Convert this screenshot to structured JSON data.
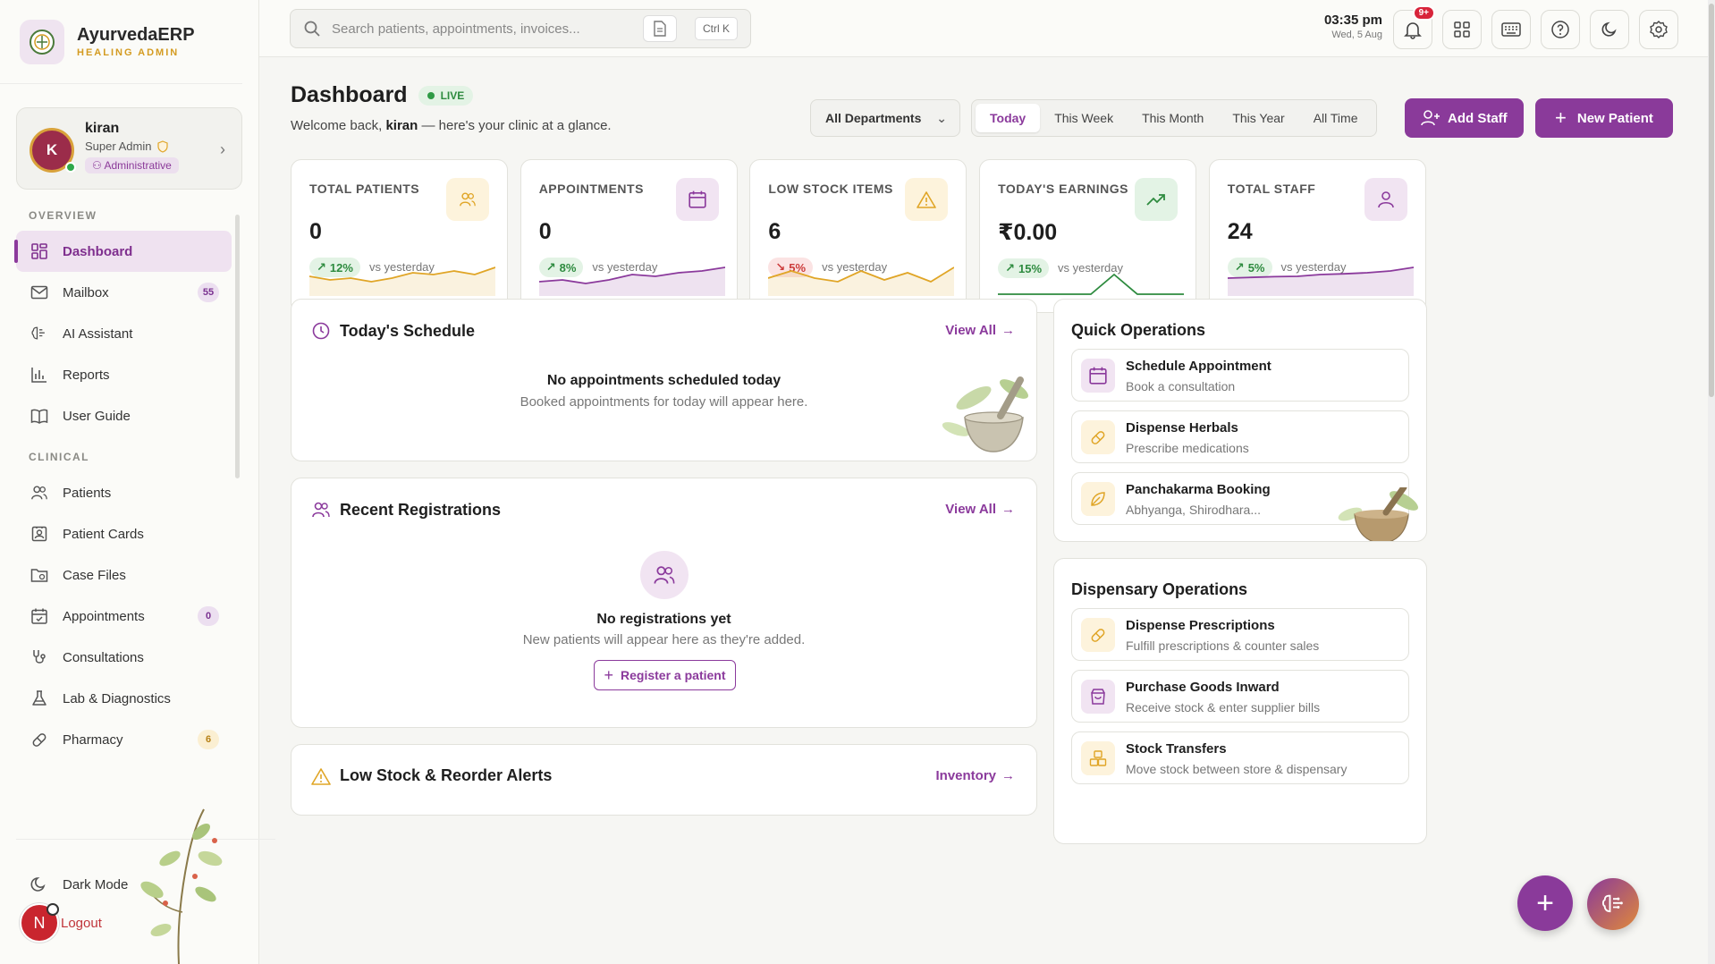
{
  "brand": {
    "title": "AyurvedaERP",
    "subtitle": "HEALING ADMIN"
  },
  "user": {
    "initial": "K",
    "name": "kiran",
    "role": "Super Admin",
    "badge": "Administrative"
  },
  "nav": {
    "overview_label": "OVERVIEW",
    "clinical_label": "CLINICAL",
    "overview": [
      {
        "label": "Dashboard",
        "icon": "dashboard-icon",
        "active": true
      },
      {
        "label": "Mailbox",
        "icon": "mail-icon",
        "badge": "55"
      },
      {
        "label": "AI Assistant",
        "icon": "ai-brain-icon"
      },
      {
        "label": "Reports",
        "icon": "bar-chart-icon"
      },
      {
        "label": "User Guide",
        "icon": "book-icon"
      }
    ],
    "clinical": [
      {
        "label": "Patients",
        "icon": "users-icon"
      },
      {
        "label": "Patient Cards",
        "icon": "id-card-icon"
      },
      {
        "label": "Case Files",
        "icon": "folder-icon"
      },
      {
        "label": "Appointments",
        "icon": "calendar-check-icon",
        "badge": "0"
      },
      {
        "label": "Consultations",
        "icon": "stethoscope-icon"
      },
      {
        "label": "Lab & Diagnostics",
        "icon": "flask-icon"
      },
      {
        "label": "Pharmacy",
        "icon": "pill-icon",
        "badge": "6"
      }
    ],
    "dark_mode": "Dark Mode",
    "logout": "Logout",
    "logout_initial": "N"
  },
  "topbar": {
    "search_placeholder": "Search patients, appointments, invoices...",
    "shortcut": "Ctrl K",
    "time": "03:35 pm",
    "date": "Wed, 5 Aug",
    "notif_count": "9+"
  },
  "header": {
    "title": "Dashboard",
    "live": "LIVE",
    "welcome_prefix": "Welcome back, ",
    "welcome_name": "kiran",
    "welcome_suffix": " — here's your clinic at a glance.",
    "department": "All Departments",
    "ranges": [
      "Today",
      "This Week",
      "This Month",
      "This Year",
      "All Time"
    ],
    "selected_range": "Today",
    "add_staff": "Add Staff",
    "new_patient": "New Patient"
  },
  "stats": [
    {
      "label": "TOTAL PATIENTS",
      "value": "0",
      "trend": "12%",
      "direction": "up",
      "vs": "vs yesterday",
      "color": "#e0a526",
      "icon_bg": "#fdf3dc",
      "icon": "users-icon",
      "spark": [
        0.45,
        0.55,
        0.5,
        0.6,
        0.5,
        0.35,
        0.4,
        0.3,
        0.4,
        0.2
      ]
    },
    {
      "label": "APPOINTMENTS",
      "value": "0",
      "trend": "8%",
      "direction": "up",
      "vs": "vs yesterday",
      "color": "#8b3a9c",
      "icon_bg": "#f1e4f2",
      "icon": "calendar-icon",
      "spark": [
        0.6,
        0.55,
        0.65,
        0.55,
        0.4,
        0.45,
        0.35,
        0.3,
        0.2
      ]
    },
    {
      "label": "LOW STOCK ITEMS",
      "value": "6",
      "trend": "5%",
      "direction": "down",
      "vs": "vs yesterday",
      "color": "#e0a526",
      "icon_bg": "#fdf3dc",
      "icon": "warning-icon",
      "spark": [
        0.5,
        0.3,
        0.5,
        0.6,
        0.3,
        0.55,
        0.35,
        0.6,
        0.2
      ]
    },
    {
      "label": "TODAY'S EARNINGS",
      "value": "₹0.00",
      "trend": "15%",
      "direction": "up",
      "vs": "vs yesterday",
      "color": "#2e8b3f",
      "icon_bg": "#e3f3e5",
      "icon": "trending-up-icon",
      "spark": [
        0.95,
        0.95,
        0.95,
        0.95,
        0.95,
        0.4,
        0.95,
        0.95,
        0.95
      ]
    },
    {
      "label": "TOTAL STAFF",
      "value": "24",
      "trend": "5%",
      "direction": "up",
      "vs": "vs yesterday",
      "color": "#8b3a9c",
      "icon_bg": "#f1e4f2",
      "icon": "user-group-icon",
      "spark": [
        0.5,
        0.48,
        0.46,
        0.45,
        0.4,
        0.38,
        0.35,
        0.3,
        0.2
      ]
    }
  ],
  "schedule": {
    "title": "Today's Schedule",
    "view_all": "View All",
    "empty_title": "No appointments scheduled today",
    "empty_sub": "Booked appointments for today will appear here."
  },
  "registrations": {
    "title": "Recent Registrations",
    "view_all": "View All",
    "empty_title": "No registrations yet",
    "empty_sub": "New patients will appear here as they're added.",
    "register": "Register a patient"
  },
  "alerts": {
    "title": "Low Stock & Reorder Alerts",
    "link": "Inventory"
  },
  "quick_ops": {
    "title": "Quick Operations",
    "items": [
      {
        "title": "Schedule Appointment",
        "sub": "Book a consultation",
        "icon": "calendar-icon",
        "bg": "#f1e4f2",
        "color": "#8b3a9c"
      },
      {
        "title": "Dispense Herbals",
        "sub": "Prescribe medications",
        "icon": "pill-icon",
        "bg": "#fdf3dc",
        "color": "#e0a526"
      },
      {
        "title": "Panchakarma Booking",
        "sub": "Abhyanga, Shirodhara...",
        "icon": "leaf-icon",
        "bg": "#fdf3dc",
        "color": "#e0a526"
      }
    ]
  },
  "dispensary": {
    "title": "Dispensary Operations",
    "items": [
      {
        "title": "Dispense Prescriptions",
        "sub": "Fulfill prescriptions & counter sales",
        "icon": "pill-icon",
        "bg": "#fdf3dc",
        "color": "#e0a526"
      },
      {
        "title": "Purchase Goods Inward",
        "sub": "Receive stock & enter supplier bills",
        "icon": "shopping-bag-icon",
        "bg": "#f1e4f2",
        "color": "#8b3a9c"
      },
      {
        "title": "Stock Transfers",
        "sub": "Move stock between store & dispensary",
        "icon": "boxes-icon",
        "bg": "#fdf3dc",
        "color": "#e0a526"
      }
    ]
  },
  "colors": {
    "accent": "#8a3a9a",
    "amber": "#e0a526",
    "green": "#2e8b3f",
    "red": "#cc3b3b"
  }
}
